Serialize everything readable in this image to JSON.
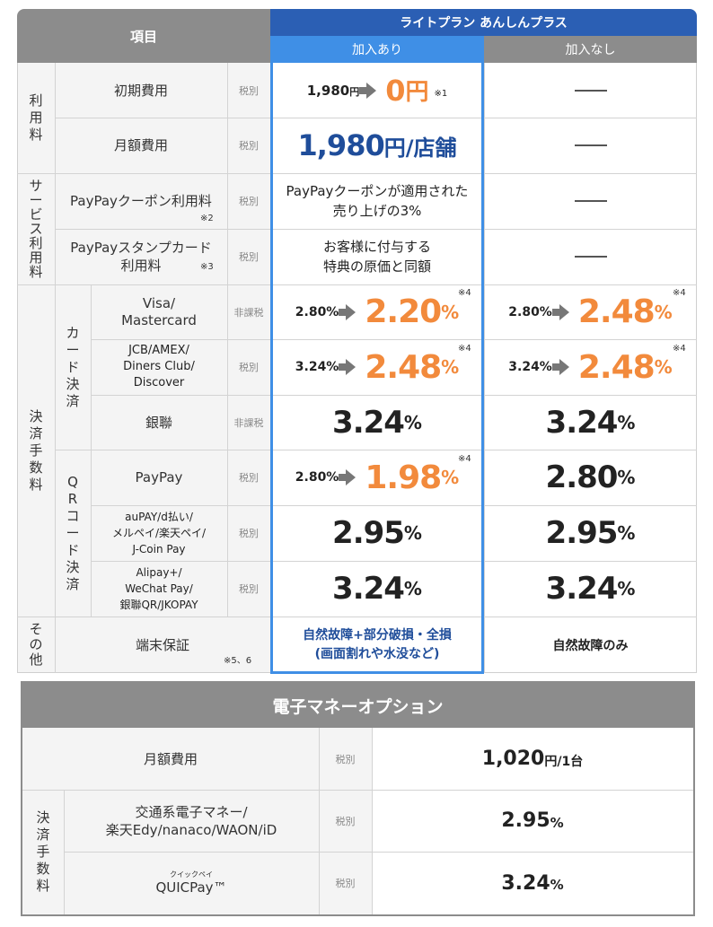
{
  "header": {
    "item_label": "項目",
    "plan_name": "ライトプラン あんしんプラス",
    "col_with": "加入あり",
    "col_without": "加入なし"
  },
  "groups": {
    "usage": [
      "利",
      "用",
      "料"
    ],
    "service": [
      "サ",
      "ー",
      "ビ",
      "ス",
      "利",
      "用",
      "料"
    ],
    "payment": [
      "決",
      "済",
      "手",
      "数",
      "料"
    ],
    "card": [
      "カ",
      "ー",
      "ド",
      "決",
      "済"
    ],
    "qr": [
      "Q",
      "R",
      "コ",
      "ー",
      "ド",
      "決",
      "済"
    ],
    "other": [
      "そ",
      "の",
      "他"
    ]
  },
  "rows": {
    "initial": {
      "label": "初期費用",
      "tax": "税別",
      "old": "1,980",
      "old_unit": "円",
      "new": "0",
      "new_unit": "円",
      "note": "※1"
    },
    "monthly": {
      "label": "月額費用",
      "tax": "税別",
      "value": "1,980",
      "unit": "円/店舗"
    },
    "coupon": {
      "label": "PayPayクーポン利用料",
      "note": "※2",
      "tax": "税別",
      "line1": "PayPayクーポンが適用された",
      "line2": "売り上げの3%"
    },
    "stamp": {
      "label1": "PayPayスタンプカード",
      "label2": "利用料",
      "note": "※3",
      "tax": "税別",
      "line1": "お客様に付与する",
      "line2": "特典の原価と同額"
    },
    "visa": {
      "label1": "Visa/",
      "label2": "Mastercard",
      "tax": "非課税",
      "with_old": "2.80%",
      "with_new": "2.20",
      "without_old": "2.80%",
      "without_new": "2.48",
      "note": "※4"
    },
    "jcb": {
      "label1": "JCB/AMEX/",
      "label2": "Diners Club/",
      "label3": "Discover",
      "tax": "税別",
      "with_old": "3.24%",
      "with_new": "2.48",
      "without_old": "3.24%",
      "without_new": "2.48",
      "note": "※4"
    },
    "unionpay": {
      "label": "銀聯",
      "tax": "非課税",
      "with": "3.24",
      "without": "3.24"
    },
    "paypay": {
      "label": "PayPay",
      "tax": "税別",
      "with_old": "2.80%",
      "with_new": "1.98",
      "without": "2.80",
      "note": "※4"
    },
    "aupay": {
      "label1": "auPAY/d払い/",
      "label2": "メルペイ/楽天ペイ/",
      "label3": "J-Coin Pay",
      "tax": "税別",
      "with": "2.95",
      "without": "2.95"
    },
    "alipay": {
      "label1": "Alipay+/",
      "label2": "WeChat Pay/",
      "label3": "銀聯QR/JKOPAY",
      "tax": "税別",
      "with": "3.24",
      "without": "3.24"
    },
    "warranty": {
      "label": "端末保証",
      "note": "※5、6",
      "with1": "自然故障+部分破損・全損",
      "with2": "(画面割れや水没など)",
      "without": "自然故障のみ"
    }
  },
  "pct": "%",
  "emoney": {
    "title": "電子マネーオプション",
    "monthly_label": "月額費用",
    "monthly_tax": "税別",
    "monthly_value": "1,020",
    "monthly_unit": "円/1台",
    "group": [
      "決",
      "済",
      "手",
      "数",
      "料"
    ],
    "transit_label1": "交通系電子マネー/",
    "transit_label2": "楽天Edy/nanaco/WAON/iD",
    "transit_tax": "税別",
    "transit_value": "2.95",
    "quic_ruby": "クイックペイ",
    "quic_label": "QUICPay™",
    "quic_tax": "税別",
    "quic_value": "3.24"
  },
  "colors": {
    "header_gray": "#8c8c8c",
    "plan_blue": "#2b5fb4",
    "highlight_blue": "#3f8fe6",
    "orange": "#f28a3c",
    "navy": "#1f4d9a"
  }
}
